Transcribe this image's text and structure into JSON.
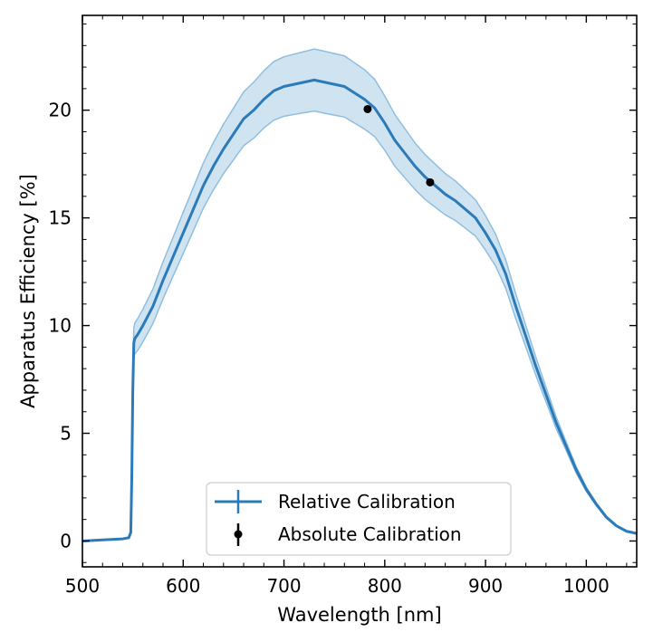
{
  "chart_data": {
    "type": "line",
    "title": "",
    "xlabel": "Wavelength [nm]",
    "ylabel": "Apparatus Efficiency [%]",
    "xlim": [
      500,
      1050
    ],
    "ylim": [
      -1.2,
      24.4
    ],
    "x_ticks": [
      500,
      600,
      700,
      800,
      900,
      1000
    ],
    "y_ticks": [
      0,
      5,
      10,
      15,
      20
    ],
    "grid": false,
    "legend_position": "lower-center",
    "series": [
      {
        "name": "Relative Calibration",
        "style": "line-with-band",
        "color": "#2b7bba",
        "band_color": "#a9cce3",
        "x": [
          500,
          520,
          540,
          546,
          548,
          549,
          550,
          551,
          552,
          555,
          560,
          570,
          580,
          590,
          600,
          610,
          620,
          630,
          640,
          650,
          660,
          670,
          680,
          690,
          700,
          710,
          720,
          730,
          740,
          750,
          760,
          770,
          780,
          790,
          800,
          810,
          820,
          830,
          840,
          850,
          860,
          870,
          880,
          890,
          900,
          910,
          920,
          930,
          940,
          950,
          960,
          970,
          980,
          990,
          1000,
          1010,
          1020,
          1030,
          1040,
          1050
        ],
        "y": [
          0.0,
          0.05,
          0.1,
          0.15,
          0.4,
          3.0,
          7.0,
          9.2,
          9.4,
          9.6,
          10.0,
          10.9,
          12.1,
          13.2,
          14.3,
          15.4,
          16.5,
          17.4,
          18.2,
          18.9,
          19.6,
          20.0,
          20.5,
          20.9,
          21.1,
          21.2,
          21.3,
          21.4,
          21.3,
          21.2,
          21.1,
          20.8,
          20.5,
          20.1,
          19.4,
          18.6,
          18.0,
          17.4,
          16.9,
          16.5,
          16.1,
          15.8,
          15.4,
          15.0,
          14.3,
          13.5,
          12.4,
          10.9,
          9.5,
          8.1,
          6.8,
          5.5,
          4.4,
          3.3,
          2.4,
          1.7,
          1.1,
          0.7,
          0.45,
          0.35
        ],
        "band_halfwidth": [
          0.0,
          0.0,
          0.0,
          0.0,
          0.05,
          0.3,
          0.6,
          0.7,
          0.72,
          0.74,
          0.76,
          0.8,
          0.86,
          0.9,
          0.96,
          1.0,
          1.05,
          1.1,
          1.15,
          1.2,
          1.25,
          1.3,
          1.33,
          1.36,
          1.38,
          1.4,
          1.42,
          1.44,
          1.44,
          1.43,
          1.42,
          1.4,
          1.38,
          1.33,
          1.26,
          1.2,
          1.14,
          1.08,
          1.04,
          1.0,
          0.96,
          0.92,
          0.88,
          0.84,
          0.8,
          0.74,
          0.66,
          0.58,
          0.5,
          0.42,
          0.34,
          0.27,
          0.2,
          0.15,
          0.1,
          0.07,
          0.05,
          0.03,
          0.02,
          0.02
        ]
      },
      {
        "name": "Absolute Calibration",
        "style": "points",
        "color": "#000000",
        "x": [
          783,
          845
        ],
        "y": [
          20.05,
          16.65
        ]
      }
    ]
  }
}
